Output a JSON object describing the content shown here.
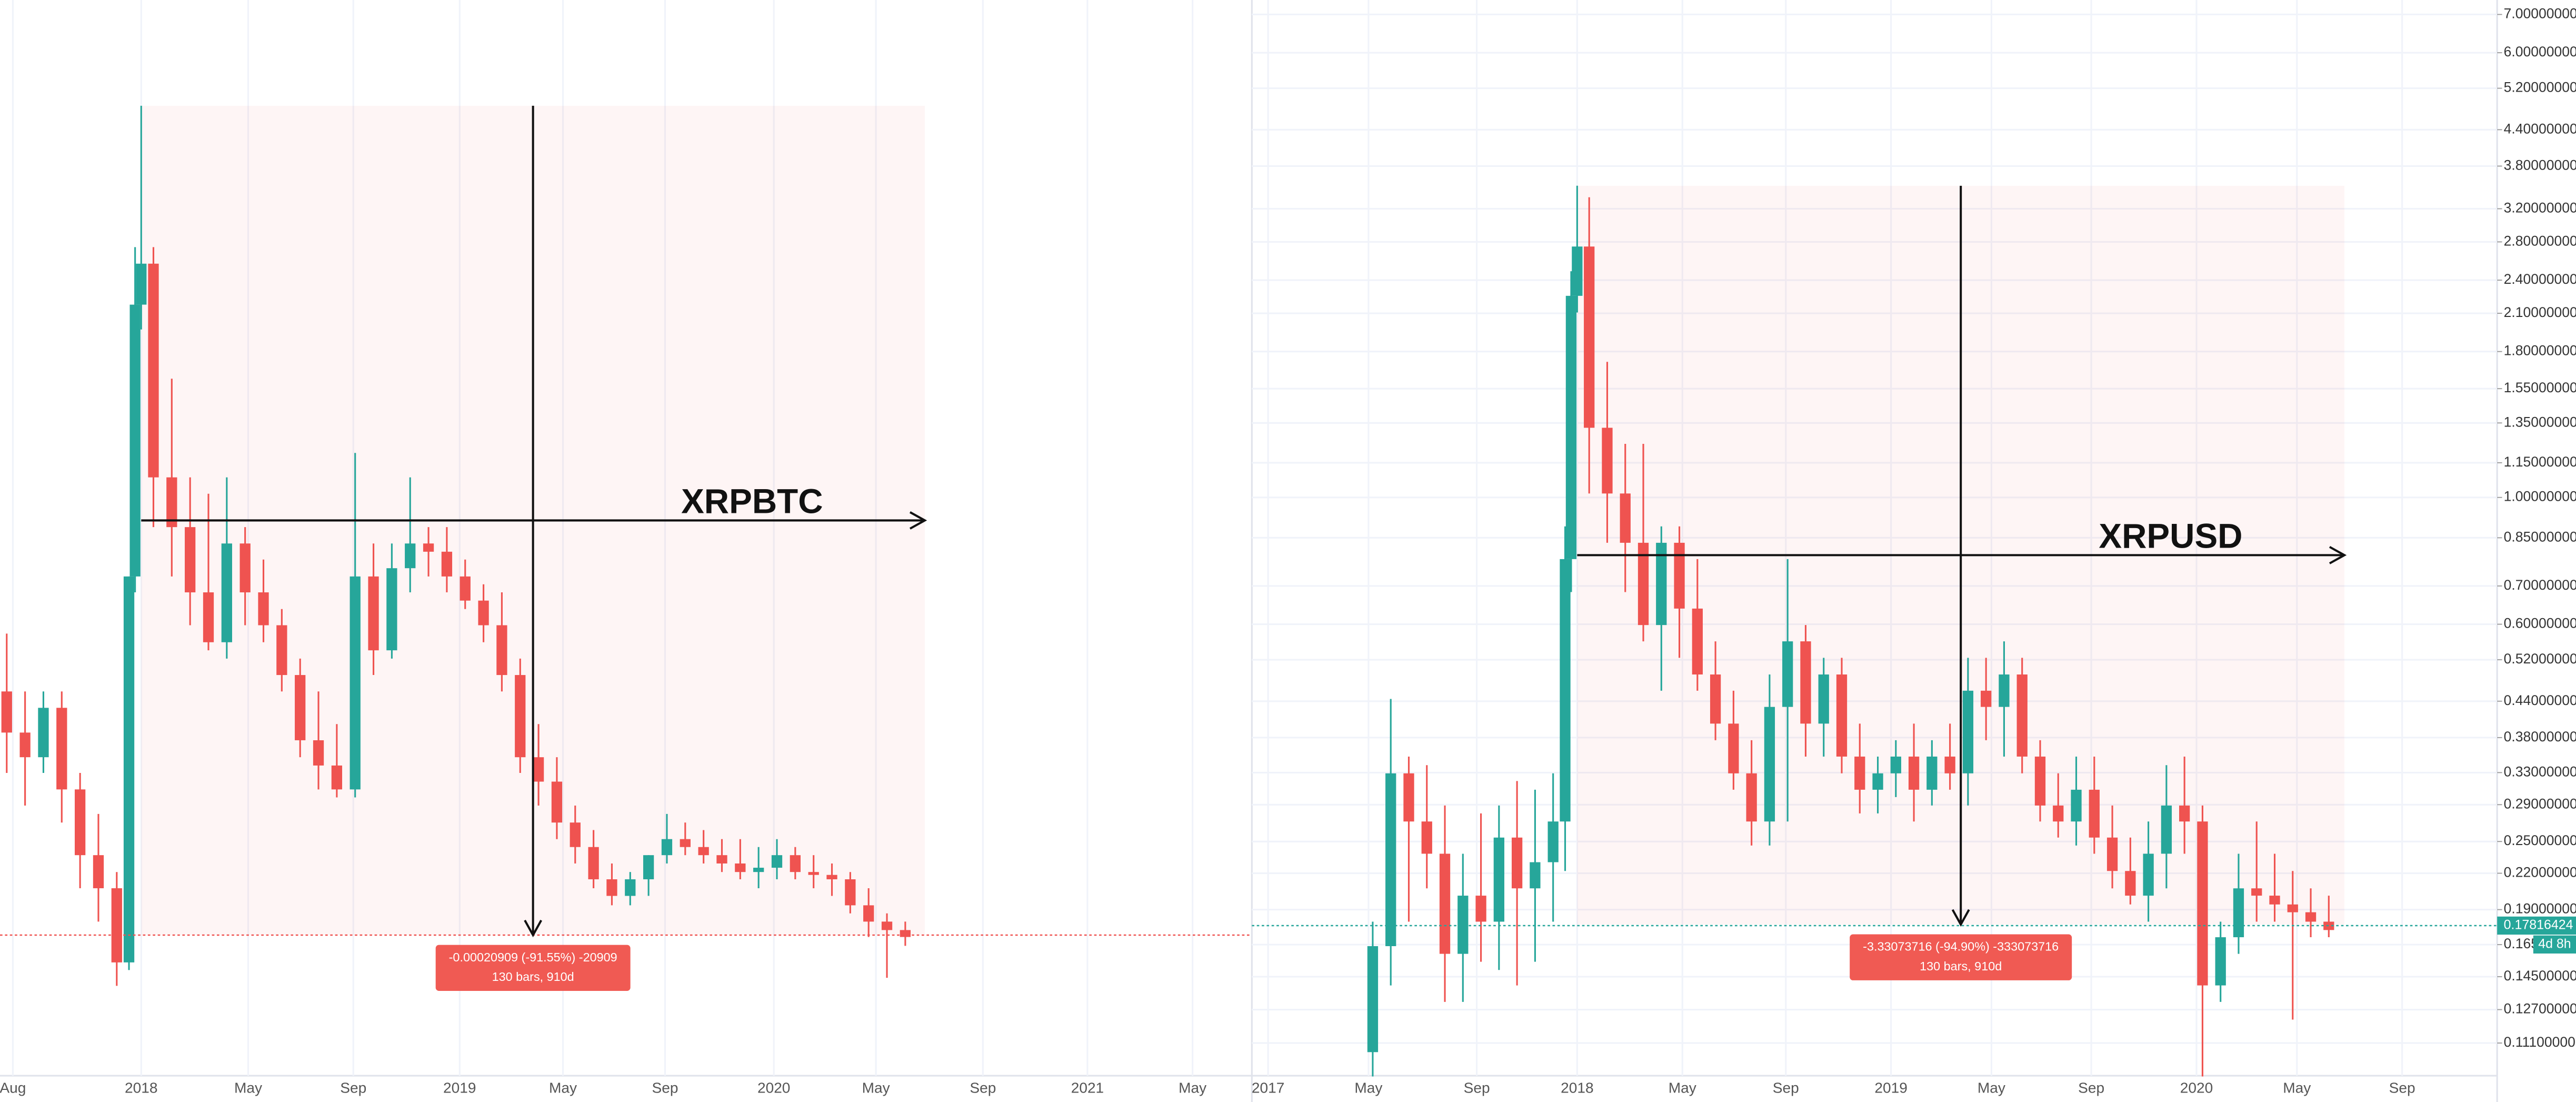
{
  "chart_data": [
    {
      "type": "candlestick",
      "annotation": "XRPBTC",
      "log_scale": true,
      "grid": true,
      "up_color": "#26a69a",
      "down_color": "#ef5350",
      "xlim": [
        -23.1,
        181.7
      ],
      "xticks": [
        {
          "value": -21,
          "label": "Aug"
        },
        {
          "value": 0,
          "label": "2018"
        },
        {
          "value": 17.5,
          "label": "May"
        },
        {
          "value": 34.7,
          "label": "Sep"
        },
        {
          "value": 52.1,
          "label": "2019"
        },
        {
          "value": 69,
          "label": "May"
        },
        {
          "value": 85.7,
          "label": "Sep"
        },
        {
          "value": 103.5,
          "label": "2020"
        },
        {
          "value": 120.2,
          "label": "May"
        },
        {
          "value": 137.7,
          "label": "Sep"
        },
        {
          "value": 154.8,
          "label": "2021"
        },
        {
          "value": 172,
          "label": "May"
        }
      ],
      "ylim": [
        1.27e-05,
        0.000313
      ],
      "x": [
        -22,
        -19,
        -16,
        -13,
        -10,
        -7,
        -4,
        -2,
        -1,
        0,
        2,
        5,
        8,
        11,
        14,
        17,
        20,
        23,
        26,
        29,
        32,
        35,
        38,
        41,
        44,
        47,
        50,
        53,
        56,
        59,
        62,
        65,
        68,
        71,
        74,
        77,
        80,
        83,
        86,
        89,
        92,
        95,
        98,
        101,
        104,
        107,
        110,
        113,
        116,
        119,
        122,
        125
      ],
      "open": [
        3.99e-05,
        3.53e-05,
        3.28e-05,
        3.8e-05,
        2.98e-05,
        2.45e-05,
        2.22e-05,
        1.78e-05,
        5.62e-05,
        0.0001263,
        0.0001427,
        7.55e-05,
        6.51e-05,
        5.36e-05,
        4.62e-05,
        6.2e-05,
        5.36e-05,
        4.86e-05,
        4.19e-05,
        3.45e-05,
        3.2e-05,
        2.98e-05,
        5.62e-05,
        4.51e-05,
        5.76e-05,
        6.2e-05,
        6.05e-05,
        5.62e-05,
        5.23e-05,
        4.86e-05,
        4.19e-05,
        3.28e-05,
        3.05e-05,
        2.7e-05,
        2.51e-05,
        2.28e-05,
        2.17e-05,
        2.28e-05,
        2.45e-05,
        2.57e-05,
        2.51e-05,
        2.45e-05,
        2.39e-05,
        2.33e-05,
        2.36e-05,
        2.45e-05,
        2.33e-05,
        2.31e-05,
        2.28e-05,
        2.11e-05,
        2.01e-05,
        1.96e-05
      ],
      "high": [
        4.74e-05,
        3.99e-05,
        3.99e-05,
        3.99e-05,
        3.13e-05,
        2.77e-05,
        2.33e-05,
        5.62e-05,
        0.0001499,
        0.0002284,
        0.0001499,
        0.0001013,
        7.55e-05,
        7.19e-05,
        7.55e-05,
        6.51e-05,
        5.91e-05,
        5.1e-05,
        4.4e-05,
        3.99e-05,
        3.62e-05,
        8.12e-05,
        6.2e-05,
        6.2e-05,
        7.55e-05,
        6.51e-05,
        6.51e-05,
        5.91e-05,
        5.49e-05,
        5.36e-05,
        4.4e-05,
        3.62e-05,
        3.28e-05,
        2.84e-05,
        2.64e-05,
        2.39e-05,
        2.33e-05,
        2.45e-05,
        2.77e-05,
        2.7e-05,
        2.64e-05,
        2.57e-05,
        2.57e-05,
        2.51e-05,
        2.57e-05,
        2.51e-05,
        2.45e-05,
        2.39e-05,
        2.33e-05,
        2.22e-05,
        2.06e-05,
        2.01e-05
      ],
      "low": [
        3.13e-05,
        2.84e-05,
        3.13e-05,
        2.7e-05,
        2.22e-05,
        2.01e-05,
        1.66e-05,
        1.74e-05,
        5.36e-05,
        0.0001173,
        6.51e-05,
        5.62e-05,
        4.86e-05,
        4.51e-05,
        4.4e-05,
        4.86e-05,
        4.62e-05,
        3.99e-05,
        3.28e-05,
        2.98e-05,
        2.91e-05,
        2.91e-05,
        4.19e-05,
        4.4e-05,
        5.36e-05,
        5.62e-05,
        5.36e-05,
        5.1e-05,
        4.62e-05,
        3.99e-05,
        3.13e-05,
        2.84e-05,
        2.57e-05,
        2.39e-05,
        2.22e-05,
        2.11e-05,
        2.11e-05,
        2.17e-05,
        2.39e-05,
        2.45e-05,
        2.39e-05,
        2.33e-05,
        2.28e-05,
        2.22e-05,
        2.28e-05,
        2.28e-05,
        2.22e-05,
        2.17e-05,
        2.06e-05,
        1.92e-05,
        1.7e-05,
        1.87e-05
      ],
      "close": [
        3.53e-05,
        3.28e-05,
        3.8e-05,
        2.98e-05,
        2.45e-05,
        2.22e-05,
        1.78e-05,
        5.62e-05,
        0.0001263,
        0.0001427,
        7.55e-05,
        6.51e-05,
        5.36e-05,
        4.62e-05,
        6.2e-05,
        5.36e-05,
        4.86e-05,
        4.19e-05,
        3.45e-05,
        3.2e-05,
        2.98e-05,
        5.62e-05,
        4.51e-05,
        5.76e-05,
        6.2e-05,
        6.05e-05,
        5.62e-05,
        5.23e-05,
        4.86e-05,
        4.19e-05,
        3.28e-05,
        3.05e-05,
        2.7e-05,
        2.51e-05,
        2.28e-05,
        2.17e-05,
        2.28e-05,
        2.45e-05,
        2.57e-05,
        2.51e-05,
        2.45e-05,
        2.39e-05,
        2.33e-05,
        2.36e-05,
        2.45e-05,
        2.33e-05,
        2.31e-05,
        2.28e-05,
        2.11e-05,
        2.01e-05,
        1.96e-05,
        1.92e-05
      ],
      "last_price": 1.931e-05,
      "last_price_color": "#ef5350",
      "measure": {
        "x": [
          0,
          128.2
        ],
        "price": [
          0.0002284,
          1.931e-05
        ],
        "labels": [
          "-0.00020909 (-91.55%) -20909",
          "130 bars, 910d"
        ],
        "color": "#f05a53"
      }
    },
    {
      "type": "candlestick",
      "annotation": "XRPUSD",
      "log_scale": true,
      "grid": true,
      "up_color": "#26a69a",
      "down_color": "#ef5350",
      "xlim": [
        -54.1,
        153.0
      ],
      "xticks": [
        {
          "value": -51.4,
          "label": "2017"
        },
        {
          "value": -34.7,
          "label": "May"
        },
        {
          "value": -16.7,
          "label": "Sep"
        },
        {
          "value": 0,
          "label": "2018"
        },
        {
          "value": 17.5,
          "label": "May"
        },
        {
          "value": 34.7,
          "label": "Sep"
        },
        {
          "value": 52.2,
          "label": "2019"
        },
        {
          "value": 68.9,
          "label": "May"
        },
        {
          "value": 85.5,
          "label": "Sep"
        },
        {
          "value": 103,
          "label": "2020"
        },
        {
          "value": 119.7,
          "label": "May"
        },
        {
          "value": 137.2,
          "label": "Sep"
        }
      ],
      "ylim": [
        0.0973,
        7.42
      ],
      "yticks": [
        {
          "value": 7,
          "label": "7.00000000"
        },
        {
          "value": 6,
          "label": "6.00000000"
        },
        {
          "value": 5.2,
          "label": "5.20000000"
        },
        {
          "value": 4.4,
          "label": "4.40000000"
        },
        {
          "value": 3.8,
          "label": "3.80000000"
        },
        {
          "value": 3.2,
          "label": "3.20000000"
        },
        {
          "value": 2.8,
          "label": "2.80000000"
        },
        {
          "value": 2.4,
          "label": "2.40000000"
        },
        {
          "value": 2.1,
          "label": "2.10000000"
        },
        {
          "value": 1.8,
          "label": "1.80000000"
        },
        {
          "value": 1.55,
          "label": "1.55000000"
        },
        {
          "value": 1.35,
          "label": "1.35000000"
        },
        {
          "value": 1.15,
          "label": "1.15000000"
        },
        {
          "value": 1,
          "label": "1.00000000"
        },
        {
          "value": 0.85,
          "label": "0.85000000"
        },
        {
          "value": 0.7,
          "label": "0.70000000"
        },
        {
          "value": 0.6,
          "label": "0.60000000"
        },
        {
          "value": 0.52,
          "label": "0.52000000"
        },
        {
          "value": 0.44,
          "label": "0.44000000"
        },
        {
          "value": 0.38,
          "label": "0.38000000"
        },
        {
          "value": 0.33,
          "label": "0.33000000"
        },
        {
          "value": 0.29,
          "label": "0.29000000"
        },
        {
          "value": 0.25,
          "label": "0.25000000"
        },
        {
          "value": 0.22,
          "label": "0.22000000"
        },
        {
          "value": 0.19,
          "label": "0.19000000"
        },
        {
          "value": 0.165,
          "label": "0.16500000"
        },
        {
          "value": 0.145,
          "label": "0.14500000"
        },
        {
          "value": 0.127,
          "label": "0.12700000"
        },
        {
          "value": 0.111,
          "label": "0.11100000"
        }
      ],
      "x": [
        -34,
        -31,
        -28,
        -25,
        -22,
        -19,
        -16,
        -13,
        -10,
        -7,
        -4,
        -2,
        -1,
        0,
        2,
        5,
        8,
        11,
        14,
        17,
        20,
        23,
        26,
        29,
        32,
        35,
        38,
        41,
        44,
        47,
        50,
        53,
        56,
        59,
        62,
        65,
        68,
        71,
        74,
        77,
        80,
        83,
        86,
        89,
        92,
        95,
        98,
        101,
        104,
        107,
        110,
        113,
        116,
        119,
        122,
        125
      ],
      "open": [
        0.107,
        0.164,
        0.329,
        0.271,
        0.238,
        0.159,
        0.201,
        0.181,
        0.254,
        0.207,
        0.23,
        0.271,
        0.78,
        2.253,
        2.748,
        1.324,
        1.016,
        0.833,
        0.598,
        0.833,
        0.639,
        0.49,
        0.402,
        0.329,
        0.271,
        0.43,
        0.56,
        0.402,
        0.49,
        0.352,
        0.308,
        0.329,
        0.352,
        0.308,
        0.352,
        0.329,
        0.459,
        0.43,
        0.49,
        0.352,
        0.289,
        0.271,
        0.308,
        0.254,
        0.222,
        0.201,
        0.238,
        0.289,
        0.271,
        0.14,
        0.17,
        0.207,
        0.201,
        0.194,
        0.188,
        0.181
      ],
      "high": [
        0.181,
        0.444,
        0.352,
        0.34,
        0.289,
        0.238,
        0.28,
        0.289,
        0.319,
        0.308,
        0.329,
        0.89,
        2.488,
        3.511,
        3.352,
        1.727,
        1.241,
        1.241,
        0.89,
        0.89,
        0.78,
        0.56,
        0.459,
        0.376,
        0.49,
        0.78,
        0.598,
        0.524,
        0.524,
        0.402,
        0.352,
        0.376,
        0.402,
        0.376,
        0.402,
        0.524,
        0.524,
        0.56,
        0.524,
        0.376,
        0.329,
        0.352,
        0.352,
        0.289,
        0.254,
        0.271,
        0.34,
        0.352,
        0.289,
        0.181,
        0.238,
        0.271,
        0.238,
        0.222,
        0.207,
        0.201
      ],
      "low": [
        0.097,
        0.14,
        0.181,
        0.207,
        0.131,
        0.131,
        0.154,
        0.149,
        0.14,
        0.154,
        0.181,
        0.222,
        0.683,
        2.107,
        1.016,
        0.833,
        0.683,
        0.56,
        0.459,
        0.524,
        0.459,
        0.376,
        0.308,
        0.246,
        0.246,
        0.271,
        0.352,
        0.352,
        0.329,
        0.28,
        0.28,
        0.299,
        0.271,
        0.289,
        0.308,
        0.289,
        0.376,
        0.352,
        0.329,
        0.271,
        0.254,
        0.246,
        0.238,
        0.207,
        0.194,
        0.181,
        0.207,
        0.238,
        0.097,
        0.131,
        0.159,
        0.181,
        0.181,
        0.122,
        0.17,
        0.17
      ],
      "close": [
        0.164,
        0.329,
        0.271,
        0.238,
        0.159,
        0.201,
        0.181,
        0.254,
        0.207,
        0.23,
        0.271,
        0.78,
        2.253,
        2.748,
        1.324,
        1.016,
        0.833,
        0.598,
        0.833,
        0.639,
        0.49,
        0.402,
        0.329,
        0.271,
        0.43,
        0.56,
        0.402,
        0.49,
        0.352,
        0.308,
        0.329,
        0.352,
        0.308,
        0.352,
        0.329,
        0.459,
        0.43,
        0.49,
        0.352,
        0.289,
        0.271,
        0.308,
        0.254,
        0.222,
        0.201,
        0.238,
        0.289,
        0.271,
        0.14,
        0.17,
        0.207,
        0.201,
        0.194,
        0.188,
        0.181,
        0.175
      ],
      "last_price": 0.17816424,
      "last_price_color": "#26a69a",
      "countdown": "4d 8h",
      "measure": {
        "x": [
          0,
          127.6
        ],
        "price": [
          3.5097,
          0.17896
        ],
        "labels": [
          "-3.33073716 (-94.90%) -333073716",
          "130 bars, 910d"
        ],
        "color": "#f05a53"
      }
    }
  ]
}
